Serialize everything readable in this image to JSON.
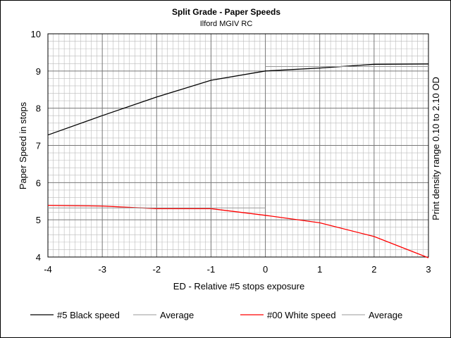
{
  "chart_data": {
    "type": "line",
    "title": "Split Grade - Paper Speeds",
    "subtitle": "Ilford MGIV RC",
    "xlabel": "ED - Relative #5 stops exposure",
    "ylabel": "Paper Speed in stops",
    "y2label": "Print density range 0.10 to 2.10 OD",
    "xlim": [
      -4,
      3
    ],
    "ylim": [
      4,
      10
    ],
    "xticks": [
      "-4",
      "-3",
      "-2",
      "-1",
      "0",
      "1",
      "2",
      "3"
    ],
    "yticks": [
      "4",
      "5",
      "6",
      "7",
      "8",
      "9",
      "10"
    ],
    "grid": true,
    "legend_position": "bottom",
    "series": [
      {
        "name": "#5 Black speed",
        "color": "#000000",
        "points": [
          [
            -4,
            7.28
          ],
          [
            -3,
            7.8
          ],
          [
            -2,
            8.3
          ],
          [
            -1,
            8.75
          ],
          [
            0,
            9.0
          ],
          [
            1,
            9.08
          ],
          [
            2,
            9.18
          ],
          [
            3,
            9.19
          ]
        ]
      },
      {
        "name": "Average",
        "color": "#999999",
        "points": [
          [
            0,
            9.12
          ],
          [
            3,
            9.12
          ]
        ]
      },
      {
        "name": "#00 White speed",
        "color": "#ff0000",
        "points": [
          [
            -4,
            5.39
          ],
          [
            -3,
            5.37
          ],
          [
            -2,
            5.3
          ],
          [
            -1,
            5.3
          ],
          [
            0,
            5.12
          ],
          [
            1,
            4.92
          ],
          [
            2,
            4.55
          ],
          [
            3,
            3.98
          ]
        ]
      },
      {
        "name": "Average",
        "color": "#999999",
        "points": [
          [
            -4,
            5.32
          ],
          [
            0,
            5.32
          ]
        ]
      }
    ]
  }
}
